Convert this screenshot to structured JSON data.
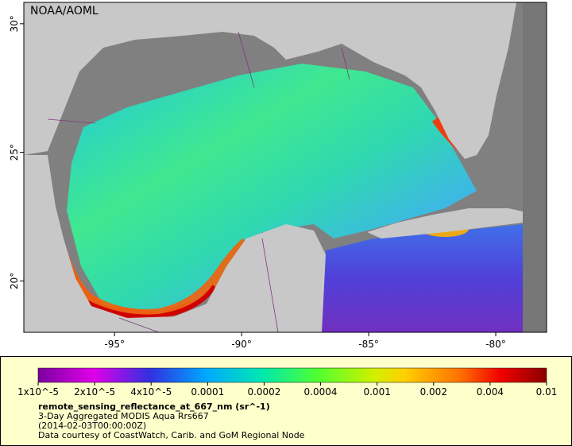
{
  "map": {
    "credit": "NOAA/AOML",
    "xlim": [
      -98.57,
      -78.0
    ],
    "ylim": [
      18.0,
      30.83
    ],
    "xticks": [
      {
        "value": -95,
        "label": "-95°"
      },
      {
        "value": -90,
        "label": "-90°"
      },
      {
        "value": -85,
        "label": "-85°"
      },
      {
        "value": -80,
        "label": "-80°"
      }
    ],
    "yticks": [
      {
        "value": 20,
        "label": "20°"
      },
      {
        "value": 25,
        "label": "25°"
      },
      {
        "value": 30,
        "label": "30°"
      }
    ]
  },
  "legend": {
    "colorbar_labels": [
      "1x10^-5",
      "2x10^-5",
      "4x10^-5",
      "0.0001",
      "0.0002",
      "0.0004",
      "0.001",
      "0.002",
      "0.004",
      "0.01"
    ],
    "variable": "remote_sensing_reflectance_at_667_nm (sr^-1)",
    "lines": [
      "3-Day Aggregated MODIS Aqua Rrs667",
      "(2014-02-03T00:00:00Z)",
      "Data courtesy of CoastWatch, Carib. and GoM Regional Node"
    ]
  }
}
